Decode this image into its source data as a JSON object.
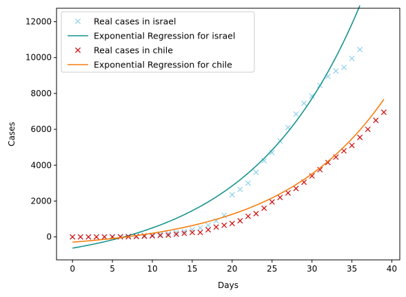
{
  "chart_data": {
    "type": "line",
    "xlabel": "Days",
    "ylabel": "Cases",
    "xlim": [
      -2,
      41
    ],
    "ylim": [
      -1280,
      12750
    ],
    "x_ticks": [
      0,
      5,
      10,
      15,
      20,
      25,
      30,
      35,
      40
    ],
    "y_ticks": [
      0,
      2000,
      4000,
      6000,
      8000,
      10000,
      12000
    ],
    "grid": false,
    "legend_position": "top-left",
    "series": [
      {
        "name": "Real cases in israel",
        "kind": "marker",
        "color": "#8ecfee",
        "x": [
          0,
          1,
          2,
          3,
          4,
          5,
          6,
          7,
          8,
          9,
          10,
          11,
          12,
          13,
          14,
          15,
          16,
          17,
          18,
          19,
          20,
          21,
          22,
          23,
          24,
          25,
          26,
          27,
          28,
          29,
          30,
          31,
          32,
          33,
          34,
          35,
          36
        ],
        "y": [
          0,
          0,
          0,
          5,
          10,
          20,
          30,
          40,
          60,
          90,
          110,
          150,
          190,
          250,
          300,
          400,
          500,
          650,
          900,
          1200,
          2350,
          2650,
          3000,
          3600,
          4250,
          4700,
          5350,
          6100,
          6850,
          7450,
          7850,
          8450,
          8950,
          9250,
          9450,
          9950,
          10450
        ]
      },
      {
        "name": "Exponential Regression for israel",
        "kind": "line",
        "color": "#15938d",
        "x_start": 0,
        "x_end": 36,
        "a": 1041,
        "b": 0.0733,
        "c": -1665
      },
      {
        "name": "Real cases in chile",
        "kind": "marker",
        "color": "#d40000",
        "x": [
          0,
          1,
          2,
          3,
          4,
          5,
          6,
          7,
          8,
          9,
          10,
          11,
          12,
          13,
          14,
          15,
          16,
          17,
          18,
          19,
          20,
          21,
          22,
          23,
          24,
          25,
          26,
          27,
          28,
          29,
          30,
          31,
          32,
          33,
          34,
          35,
          36,
          37,
          38,
          39
        ],
        "y": [
          0,
          0,
          0,
          0,
          0,
          0,
          5,
          10,
          20,
          40,
          60,
          80,
          100,
          150,
          200,
          250,
          250,
          400,
          550,
          650,
          750,
          900,
          1150,
          1300,
          1600,
          1950,
          2200,
          2450,
          2700,
          3050,
          3400,
          3750,
          4150,
          4450,
          4800,
          5100,
          5550,
          6000,
          6500,
          6950
        ]
      },
      {
        "name": "Exponential Regression for chile",
        "kind": "line",
        "color": "#f57c0f",
        "x_start": 0,
        "x_end": 39,
        "a": 435,
        "b": 0.0759,
        "c": -725
      }
    ]
  }
}
